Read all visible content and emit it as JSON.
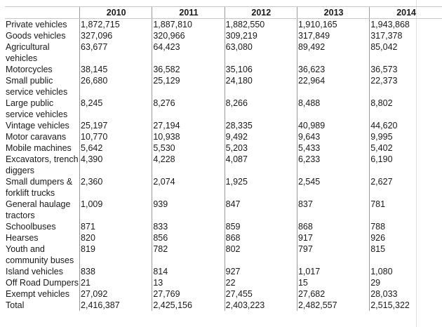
{
  "table": {
    "columns": [
      "",
      "2010",
      "2011",
      "2012",
      "2013",
      "2014"
    ],
    "rows": [
      {
        "label": "Private vehicles",
        "values": [
          "1,872,715",
          "1,887,810",
          "1,882,550",
          "1,910,165",
          "1,943,868"
        ]
      },
      {
        "label": "Goods vehicles",
        "values": [
          "327,096",
          "320,966",
          "309,219",
          "317,849",
          "317,378"
        ]
      },
      {
        "label": "Agricultural vehicles",
        "values": [
          "63,677",
          "64,423",
          "63,080",
          "89,492",
          "85,042"
        ]
      },
      {
        "label": "Motorcycles",
        "values": [
          "38,145",
          "36,582",
          "35,106",
          "36,623",
          "36,573"
        ]
      },
      {
        "label": "Small public service vehicles",
        "values": [
          "26,680",
          "25,129",
          "24,180",
          "22,964",
          "22,373"
        ]
      },
      {
        "label": "Large public service vehicles",
        "values": [
          "8,245",
          "8,276",
          "8,266",
          "8,488",
          "8,802"
        ]
      },
      {
        "label": "Vintage vehicles",
        "values": [
          "25,197",
          "27,194",
          "28,335",
          "40,989",
          "44,620"
        ]
      },
      {
        "label": "Motor caravans",
        "values": [
          "10,770",
          "10,938",
          "9,492",
          "9,643",
          "9,995"
        ]
      },
      {
        "label": "Mobile machines",
        "values": [
          "5,642",
          "5,530",
          "5,203",
          "5,433",
          "5,402"
        ]
      },
      {
        "label": "Excavators, trench diggers",
        "values": [
          "4,390",
          "4,228",
          "4,087",
          "6,233",
          "6,190"
        ]
      },
      {
        "label": "Small dumpers & forklift trucks",
        "values": [
          "2,360",
          "2,074",
          "1,925",
          "2,545",
          "2,627"
        ]
      },
      {
        "label": "General haulage tractors",
        "values": [
          "1,009",
          "939",
          "847",
          "837",
          "781"
        ]
      },
      {
        "label": "Schoolbuses",
        "values": [
          "871",
          "833",
          "859",
          "868",
          "788"
        ]
      },
      {
        "label": "Hearses",
        "values": [
          "820",
          "856",
          "868",
          "917",
          "926"
        ]
      },
      {
        "label": "Youth and community buses",
        "values": [
          "819",
          "782",
          "802",
          "797",
          "815"
        ]
      },
      {
        "label": "Island vehicles",
        "values": [
          "838",
          "814",
          "927",
          "1,017",
          "1,080"
        ]
      },
      {
        "label": "Off Road Dumpers",
        "values": [
          "21",
          "13",
          "22",
          "15",
          "29"
        ]
      },
      {
        "label": "Exempt vehicles",
        "values": [
          "27,092",
          "27,769",
          "27,455",
          "27,682",
          "28,033"
        ]
      },
      {
        "label": "Total",
        "values": [
          "2,416,387",
          "2,425,156",
          "2,403,223",
          "2,482,557",
          "2,515,322"
        ]
      }
    ]
  }
}
